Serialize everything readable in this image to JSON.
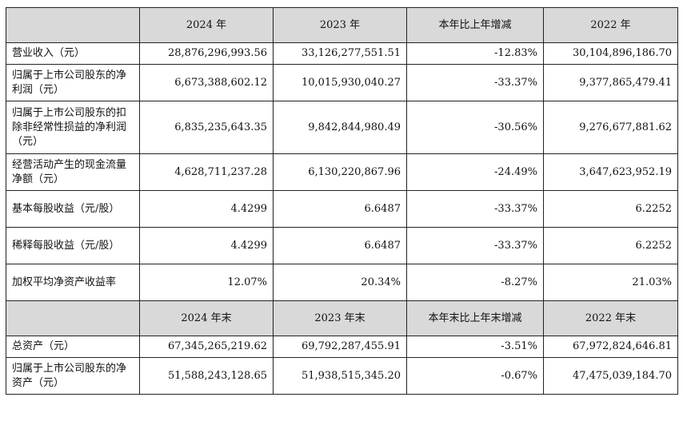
{
  "headers_top": [
    "",
    "2024 年",
    "2023 年",
    "本年比上年增减",
    "2022 年"
  ],
  "rows_top": [
    {
      "label": "营业收入（元）",
      "v2024": "28,876,296,993.56",
      "v2023": "33,126,277,551.51",
      "change": "-12.83%",
      "v2022": "30,104,896,186.70"
    },
    {
      "label": "归属于上市公司股东的净利润（元）",
      "v2024": "6,673,388,602.12",
      "v2023": "10,015,930,040.27",
      "change": "-33.37%",
      "v2022": "9,377,865,479.41"
    },
    {
      "label": "归属于上市公司股东的扣除非经常性损益的净利润（元）",
      "v2024": "6,835,235,643.35",
      "v2023": "9,842,844,980.49",
      "change": "-30.56%",
      "v2022": "9,276,677,881.62"
    },
    {
      "label": "经营活动产生的现金流量净额（元）",
      "v2024": "4,628,711,237.28",
      "v2023": "6,130,220,867.96",
      "change": "-24.49%",
      "v2022": "3,647,623,952.19"
    },
    {
      "label": "基本每股收益（元/股）",
      "v2024": "4.4299",
      "v2023": "6.6487",
      "change": "-33.37%",
      "v2022": "6.2252"
    },
    {
      "label": "稀释每股收益（元/股）",
      "v2024": "4.4299",
      "v2023": "6.6487",
      "change": "-33.37%",
      "v2022": "6.2252"
    },
    {
      "label": "加权平均净资产收益率",
      "v2024": "12.07%",
      "v2023": "20.34%",
      "change": "-8.27%",
      "v2022": "21.03%"
    }
  ],
  "headers_bottom": [
    "",
    "2024 年末",
    "2023 年末",
    "本年末比上年末增减",
    "2022 年末"
  ],
  "rows_bottom": [
    {
      "label": "总资产（元）",
      "v2024": "67,345,265,219.62",
      "v2023": "69,792,287,455.91",
      "change": "-3.51%",
      "v2022": "67,972,824,646.81"
    },
    {
      "label": "归属于上市公司股东的净资产（元）",
      "v2024": "51,588,243,128.65",
      "v2023": "51,938,515,345.20",
      "change": "-0.67%",
      "v2022": "47,475,039,184.70"
    }
  ]
}
